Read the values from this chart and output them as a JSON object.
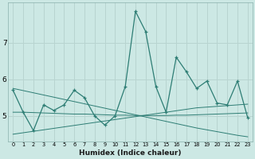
{
  "xlabel": "Humidex (Indice chaleur)",
  "x_values": [
    0,
    1,
    2,
    3,
    4,
    5,
    6,
    7,
    8,
    9,
    10,
    11,
    12,
    13,
    14,
    15,
    16,
    17,
    18,
    19,
    20,
    21,
    22,
    23
  ],
  "line1": [
    5.7,
    5.1,
    4.6,
    5.3,
    5.15,
    5.3,
    5.7,
    5.5,
    5.0,
    4.75,
    5.0,
    5.8,
    7.85,
    7.3,
    5.8,
    5.1,
    6.6,
    6.2,
    5.75,
    5.95,
    5.35,
    5.3,
    5.95,
    4.95
  ],
  "trend1": [
    5.1,
    5.1,
    5.09,
    5.08,
    5.07,
    5.06,
    5.05,
    5.05,
    5.04,
    5.03,
    5.02,
    5.02,
    5.01,
    5.01,
    5.01,
    5.01,
    5.02,
    5.02,
    5.03,
    5.04,
    5.05,
    5.06,
    5.07,
    5.08
  ],
  "trend2": [
    4.5,
    4.54,
    4.58,
    4.62,
    4.66,
    4.7,
    4.74,
    4.78,
    4.82,
    4.86,
    4.9,
    4.94,
    4.98,
    5.02,
    5.06,
    5.1,
    5.14,
    5.18,
    5.22,
    5.24,
    5.26,
    5.28,
    5.3,
    5.32
  ],
  "trend3": [
    5.75,
    5.69,
    5.63,
    5.57,
    5.51,
    5.45,
    5.39,
    5.33,
    5.27,
    5.21,
    5.15,
    5.09,
    5.03,
    4.97,
    4.91,
    4.85,
    4.79,
    4.73,
    4.67,
    4.62,
    4.57,
    4.52,
    4.47,
    4.43
  ],
  "line_color": "#2d7d74",
  "bg_color": "#cce8e4",
  "grid_color": "#b8d4d0",
  "ylim": [
    4.3,
    8.1
  ],
  "yticks": [
    5,
    6,
    7
  ],
  "xlim": [
    -0.5,
    23.5
  ]
}
